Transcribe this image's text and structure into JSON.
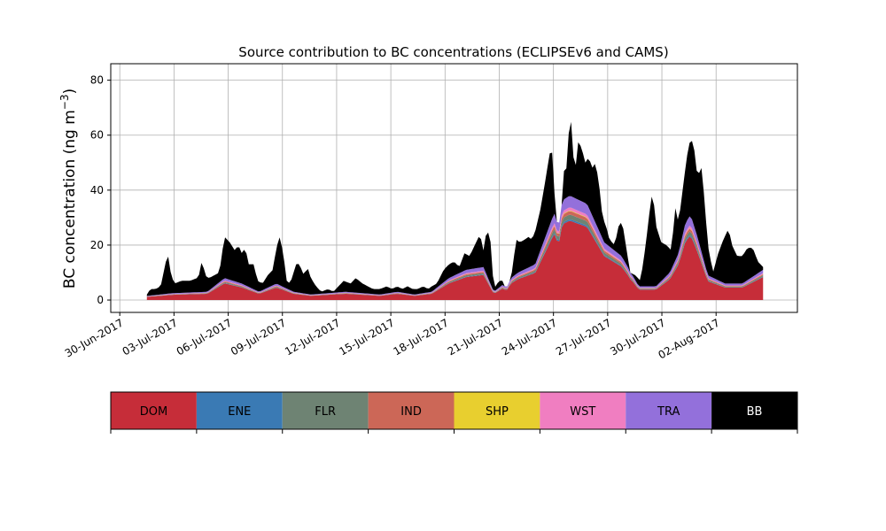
{
  "chart_data": {
    "type": "area",
    "stacked": true,
    "title": "Source contribution to BC concentrations (ECLIPSEv6 and CAMS)",
    "ylabel": "BC concentration (ng m",
    "ylabel_sup": "−3",
    "ylabel_close": ")",
    "xlabel": "",
    "xlim": [
      -0.5,
      37.5
    ],
    "ylim": [
      -4.5,
      86
    ],
    "grid": true,
    "yticks": [
      0,
      20,
      40,
      60,
      80
    ],
    "xticks": [
      {
        "day": 0,
        "label": "30-Jun-2017"
      },
      {
        "day": 3,
        "label": "03-Jul-2017"
      },
      {
        "day": 6,
        "label": "06-Jul-2017"
      },
      {
        "day": 9,
        "label": "09-Jul-2017"
      },
      {
        "day": 12,
        "label": "12-Jul-2017"
      },
      {
        "day": 15,
        "label": "15-Jul-2017"
      },
      {
        "day": 18,
        "label": "18-Jul-2017"
      },
      {
        "day": 21,
        "label": "21-Jul-2017"
      },
      {
        "day": 24,
        "label": "24-Jul-2017"
      },
      {
        "day": 27,
        "label": "27-Jul-2017"
      },
      {
        "day": 30,
        "label": "30-Jul-2017"
      },
      {
        "day": 33,
        "label": "02-Aug-2017"
      }
    ],
    "x_days_since_30jun": [
      1.5,
      1.8,
      2.0,
      2.2,
      2.4,
      2.6,
      2.8,
      3.0,
      3.4,
      3.8,
      4.0,
      4.2,
      4.5,
      4.8,
      5.0,
      5.2,
      5.5,
      5.8,
      6.0,
      6.2,
      6.5,
      6.8,
      7.0,
      7.2,
      7.5,
      7.8,
      8.0,
      8.3,
      8.6,
      9.0,
      9.3,
      9.6,
      9.9,
      10.2,
      10.5,
      10.8,
      11.0,
      11.3,
      11.6,
      12.0,
      12.3,
      12.6,
      13.0,
      13.3,
      13.6,
      14.0,
      14.3,
      14.6,
      15.0,
      15.2,
      15.5,
      15.8,
      16.0,
      16.2,
      16.6,
      17.0,
      17.2,
      17.5,
      17.8,
      18.0,
      18.2,
      18.5,
      18.8,
      19.0,
      19.2,
      19.5,
      19.8,
      20.0,
      20.2,
      20.4,
      20.6,
      20.8,
      21.0,
      21.2,
      21.4,
      21.6,
      21.8,
      22.0,
      22.3,
      22.6,
      22.9,
      23.2,
      23.4,
      23.6,
      23.8,
      24.0,
      24.2,
      24.4,
      24.7,
      25.0,
      25.2,
      25.5,
      25.8,
      26.0,
      26.2,
      26.5,
      26.8,
      27.0,
      27.3,
      27.6,
      28.0,
      28.3,
      28.6,
      29.0,
      29.3,
      29.6,
      30.0,
      30.3,
      30.6,
      31.0,
      31.3,
      31.6,
      32.0,
      32.3,
      32.6,
      33.0,
      33.3,
      33.6,
      34.0,
      34.3,
      34.6,
      35.0,
      35.3,
      35.6,
      36.0,
      36.3,
      36.6,
      37.0,
      37.3,
      37.6,
      38.0,
      38.3,
      38.6,
      39.0
    ],
    "x_first_day": 1.5,
    "x_step_note": "",
    "series": [
      {
        "name": "DOM",
        "color": "#c62d39",
        "values": []
      },
      {
        "name": "ENE",
        "color": "#3a7ab4",
        "values": []
      },
      {
        "name": "FLR",
        "color": "#6e8373",
        "values": []
      },
      {
        "name": "IND",
        "color": "#cc6757",
        "values": []
      },
      {
        "name": "SHP",
        "color": "#e8cf2f",
        "values": []
      },
      {
        "name": "WST",
        "color": "#f07ec1",
        "values": []
      },
      {
        "name": "TRA",
        "color": "#9370db",
        "values": []
      },
      {
        "name": "BB",
        "color": "#000000",
        "values": []
      }
    ]
  },
  "legend": {
    "items": [
      {
        "label": "DOM",
        "color": "#c62d39",
        "text_color": "#000000"
      },
      {
        "label": "ENE",
        "color": "#3a7ab4",
        "text_color": "#000000"
      },
      {
        "label": "FLR",
        "color": "#6e8373",
        "text_color": "#000000"
      },
      {
        "label": "IND",
        "color": "#cc6757",
        "text_color": "#000000"
      },
      {
        "label": "SHP",
        "color": "#e8cf2f",
        "text_color": "#000000"
      },
      {
        "label": "WST",
        "color": "#f07ec1",
        "text_color": "#000000"
      },
      {
        "label": "TRA",
        "color": "#9370db",
        "text_color": "#000000"
      },
      {
        "label": "BB",
        "color": "#000000",
        "text_color": "#ffffff"
      }
    ]
  }
}
